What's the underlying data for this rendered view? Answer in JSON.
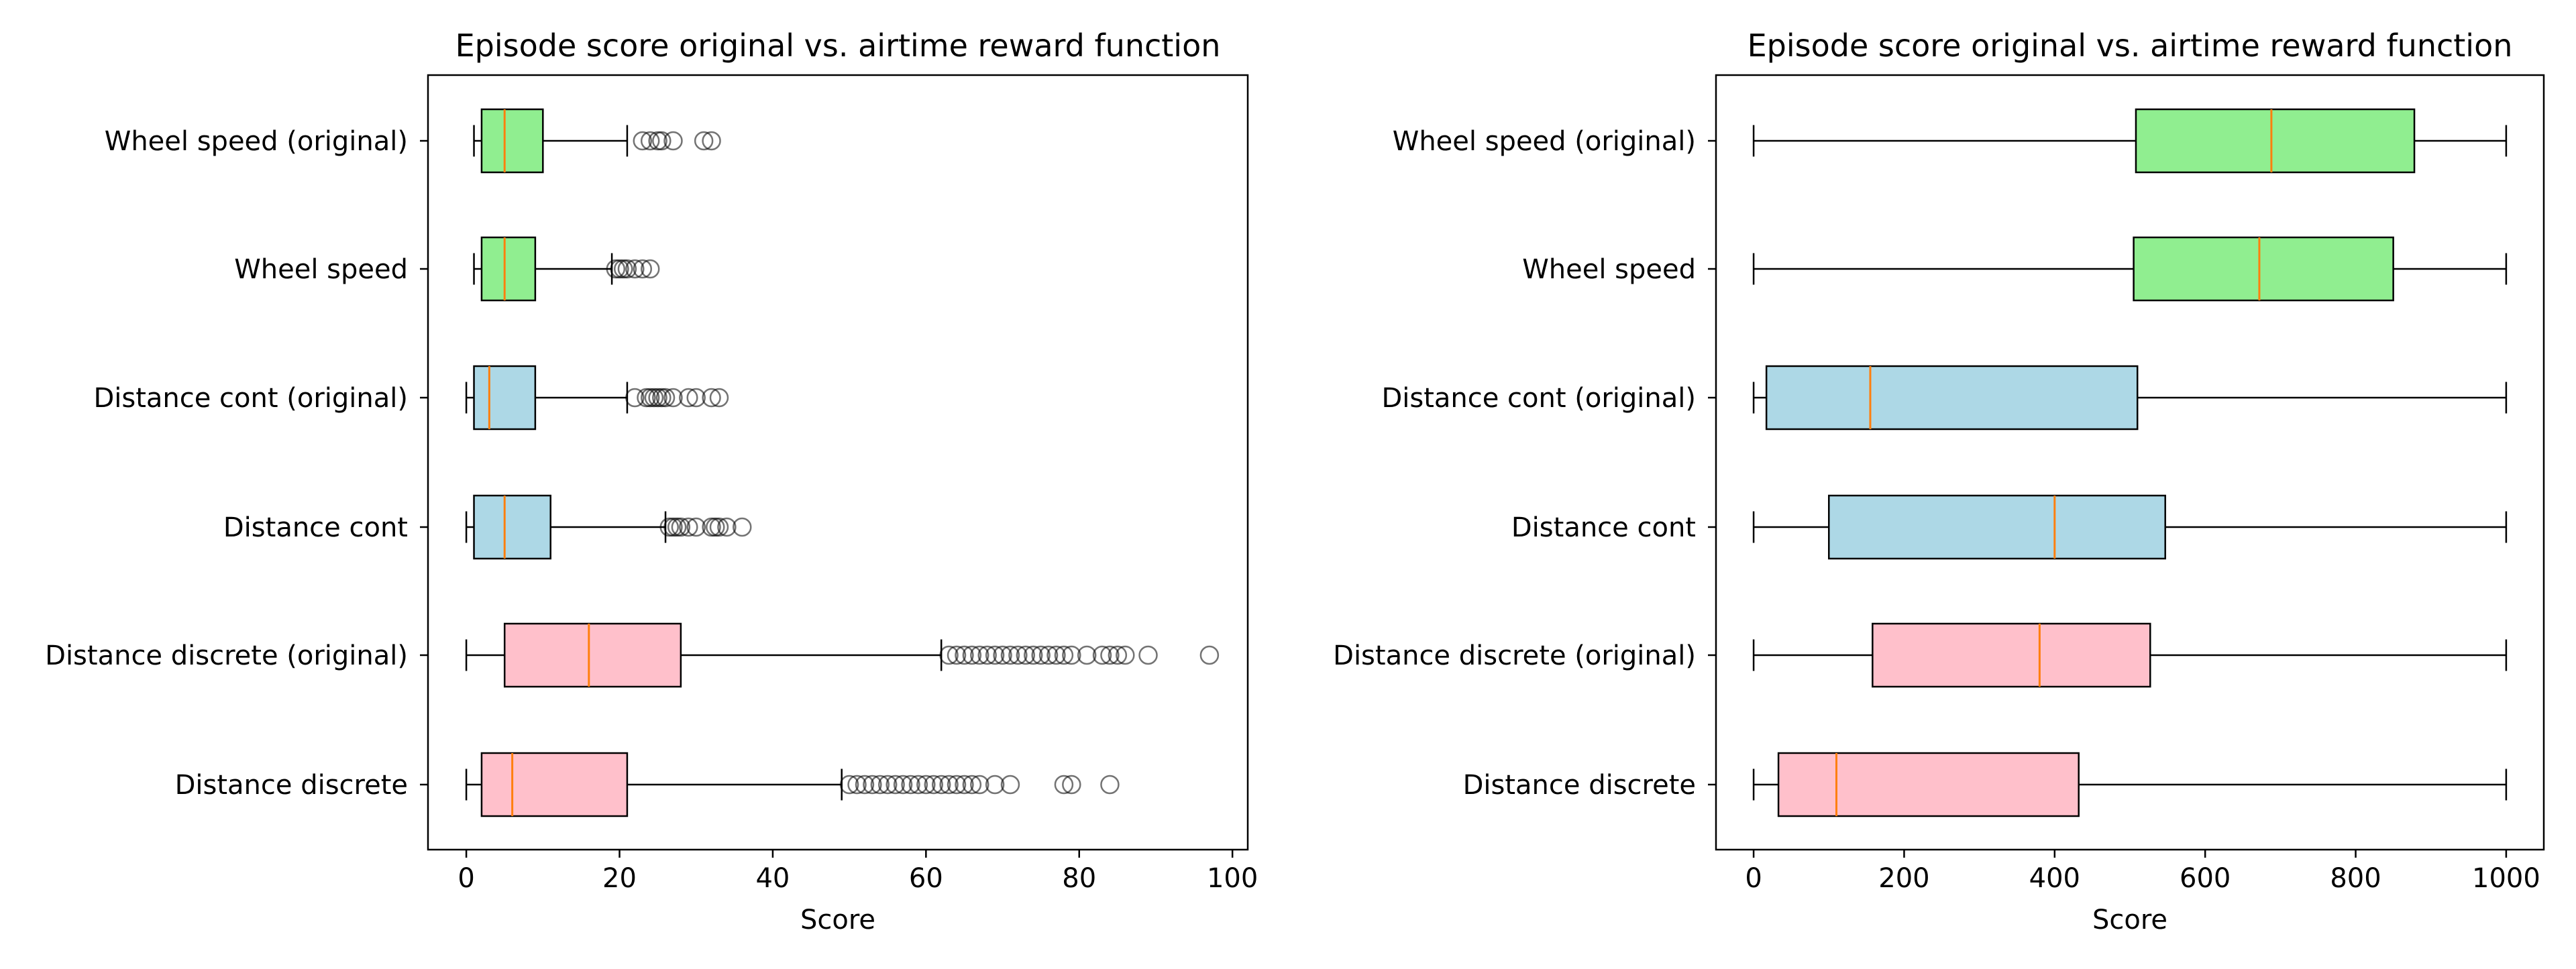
{
  "chart_data": [
    {
      "type": "boxplot",
      "orientation": "horizontal",
      "title": "Episode score original vs. airtime reward function",
      "xlabel": "Score",
      "xlim": [
        -5,
        102
      ],
      "xticks": [
        0,
        20,
        40,
        60,
        80,
        100
      ],
      "grid": false,
      "categories": [
        "Wheel speed (original)",
        "Wheel speed",
        "Distance cont (original)",
        "Distance cont",
        "Distance discrete (original)",
        "Distance discrete"
      ],
      "boxes": [
        {
          "label": "Wheel speed (original)",
          "whislo": 1,
          "q1": 2,
          "median": 5,
          "q3": 10,
          "whishi": 21,
          "fliers": [
            23,
            24,
            25,
            25.5,
            27,
            31,
            32
          ],
          "color": "#90ee90"
        },
        {
          "label": "Wheel speed",
          "whislo": 1,
          "q1": 2,
          "median": 5,
          "q3": 9,
          "whishi": 19,
          "fliers": [
            19.5,
            20,
            20.5,
            21,
            22,
            23,
            24
          ],
          "color": "#90ee90"
        },
        {
          "label": "Distance cont (original)",
          "whislo": 0,
          "q1": 1,
          "median": 3,
          "q3": 9,
          "whishi": 21,
          "fliers": [
            22,
            23.5,
            24,
            24.5,
            25,
            25.5,
            26,
            27,
            29,
            30,
            32,
            33
          ],
          "color": "#add8e6"
        },
        {
          "label": "Distance cont",
          "whislo": 0,
          "q1": 1,
          "median": 5,
          "q3": 11,
          "whishi": 26,
          "fliers": [
            26.5,
            27,
            27.5,
            28,
            29,
            30,
            32,
            32.5,
            33,
            34,
            36
          ],
          "color": "#add8e6"
        },
        {
          "label": "Distance discrete (original)",
          "whislo": 0,
          "q1": 5,
          "median": 16,
          "q3": 28,
          "whishi": 62,
          "fliers": [
            63,
            64,
            65,
            66,
            67,
            68,
            69,
            70,
            71,
            72,
            73,
            74,
            75,
            76,
            77,
            78,
            79,
            81,
            83,
            84,
            85,
            86,
            89,
            97
          ],
          "color": "#ffc0cb"
        },
        {
          "label": "Distance discrete",
          "whislo": 0,
          "q1": 2,
          "median": 6,
          "q3": 21,
          "whishi": 49,
          "fliers": [
            50,
            51,
            52,
            53,
            54,
            55,
            56,
            57,
            58,
            59,
            60,
            61,
            62,
            63,
            64,
            65,
            66,
            67,
            69,
            71,
            78,
            79,
            84
          ],
          "color": "#ffc0cb"
        }
      ]
    },
    {
      "type": "boxplot",
      "orientation": "horizontal",
      "title": "Episode score original vs. airtime reward function",
      "xlabel": "Score",
      "xlim": [
        -50,
        1050
      ],
      "xticks": [
        0,
        200,
        400,
        600,
        800,
        1000
      ],
      "grid": false,
      "categories": [
        "Wheel speed (original)",
        "Wheel speed",
        "Distance cont (original)",
        "Distance cont",
        "Distance discrete (original)",
        "Distance discrete"
      ],
      "boxes": [
        {
          "label": "Wheel speed (original)",
          "whislo": 0,
          "q1": 508,
          "median": 688,
          "q3": 878,
          "whishi": 1000,
          "fliers": [],
          "color": "#90ee90"
        },
        {
          "label": "Wheel speed",
          "whislo": 0,
          "q1": 505,
          "median": 672,
          "q3": 850,
          "whishi": 1000,
          "fliers": [],
          "color": "#90ee90"
        },
        {
          "label": "Distance cont (original)",
          "whislo": 0,
          "q1": 17,
          "median": 155,
          "q3": 510,
          "whishi": 1000,
          "fliers": [],
          "color": "#add8e6"
        },
        {
          "label": "Distance cont",
          "whislo": 0,
          "q1": 100,
          "median": 400,
          "q3": 547,
          "whishi": 1000,
          "fliers": [],
          "color": "#add8e6"
        },
        {
          "label": "Distance discrete (original)",
          "whislo": 0,
          "q1": 158,
          "median": 380,
          "q3": 527,
          "whishi": 1000,
          "fliers": [],
          "color": "#ffc0cb"
        },
        {
          "label": "Distance discrete",
          "whislo": 0,
          "q1": 33,
          "median": 110,
          "q3": 432,
          "whishi": 1000,
          "fliers": [],
          "color": "#ffc0cb"
        }
      ]
    }
  ]
}
